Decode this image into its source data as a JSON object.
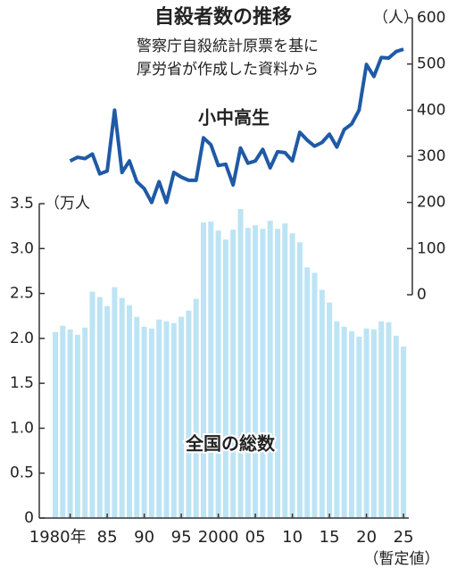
{
  "chart_data": {
    "type": "bar_line",
    "title": "自殺者数の推移",
    "subtitle": [
      "警察庁自殺統計原票を基に",
      "厚労省が作成した資料から"
    ],
    "note": "（暫定値）",
    "y_label": "（万人",
    "y2_label": "（人）",
    "categories": [
      null,
      null,
      "1980年",
      null,
      null,
      null,
      null,
      "85",
      null,
      null,
      null,
      null,
      "90",
      null,
      null,
      null,
      null,
      "95",
      null,
      null,
      null,
      null,
      "2000",
      null,
      null,
      null,
      null,
      "05",
      null,
      null,
      null,
      null,
      "10",
      null,
      null,
      null,
      null,
      "15",
      null,
      null,
      null,
      null,
      "20",
      null,
      null,
      null,
      null,
      "25"
    ],
    "series": [
      {
        "name": "全国の総数",
        "color": "#bde4f4",
        "axis": "y",
        "values": [
          2.07,
          2.14,
          2.1,
          2.04,
          2.12,
          2.52,
          2.46,
          2.36,
          2.57,
          2.45,
          2.37,
          2.24,
          2.13,
          2.11,
          2.21,
          2.19,
          2.17,
          2.24,
          2.31,
          2.44,
          3.29,
          3.3,
          3.2,
          3.1,
          3.21,
          3.44,
          3.23,
          3.26,
          3.22,
          3.31,
          3.22,
          3.28,
          3.17,
          3.07,
          2.79,
          2.73,
          2.54,
          2.4,
          2.19,
          2.13,
          2.08,
          2.02,
          2.11,
          2.1,
          2.19,
          2.18,
          2.03,
          1.91
        ]
      },
      {
        "name": "小中高生",
        "color": "#1f5aa6",
        "axis": "y2",
        "values": [
          null,
          null,
          290,
          298,
          295,
          305,
          262,
          268,
          400,
          265,
          290,
          245,
          230,
          200,
          245,
          200,
          265,
          255,
          248,
          248,
          340,
          325,
          280,
          283,
          238,
          318,
          285,
          290,
          315,
          275,
          310,
          308,
          290,
          352,
          335,
          322,
          330,
          348,
          320,
          358,
          370,
          400,
          499,
          473,
          514,
          513,
          527,
          532
        ]
      }
    ],
    "ylim": [
      0,
      3.5
    ],
    "yticks": [
      0,
      0.5,
      {
        "value": 1,
        "label": "1.0"
      },
      1.5,
      {
        "value": 2,
        "label": "2.0"
      },
      2.5,
      {
        "value": 3,
        "label": "3.0"
      },
      3.5
    ],
    "y2lim": [
      0,
      600
    ],
    "y2ticks": [
      0,
      100,
      200,
      300,
      400,
      500,
      600
    ]
  }
}
